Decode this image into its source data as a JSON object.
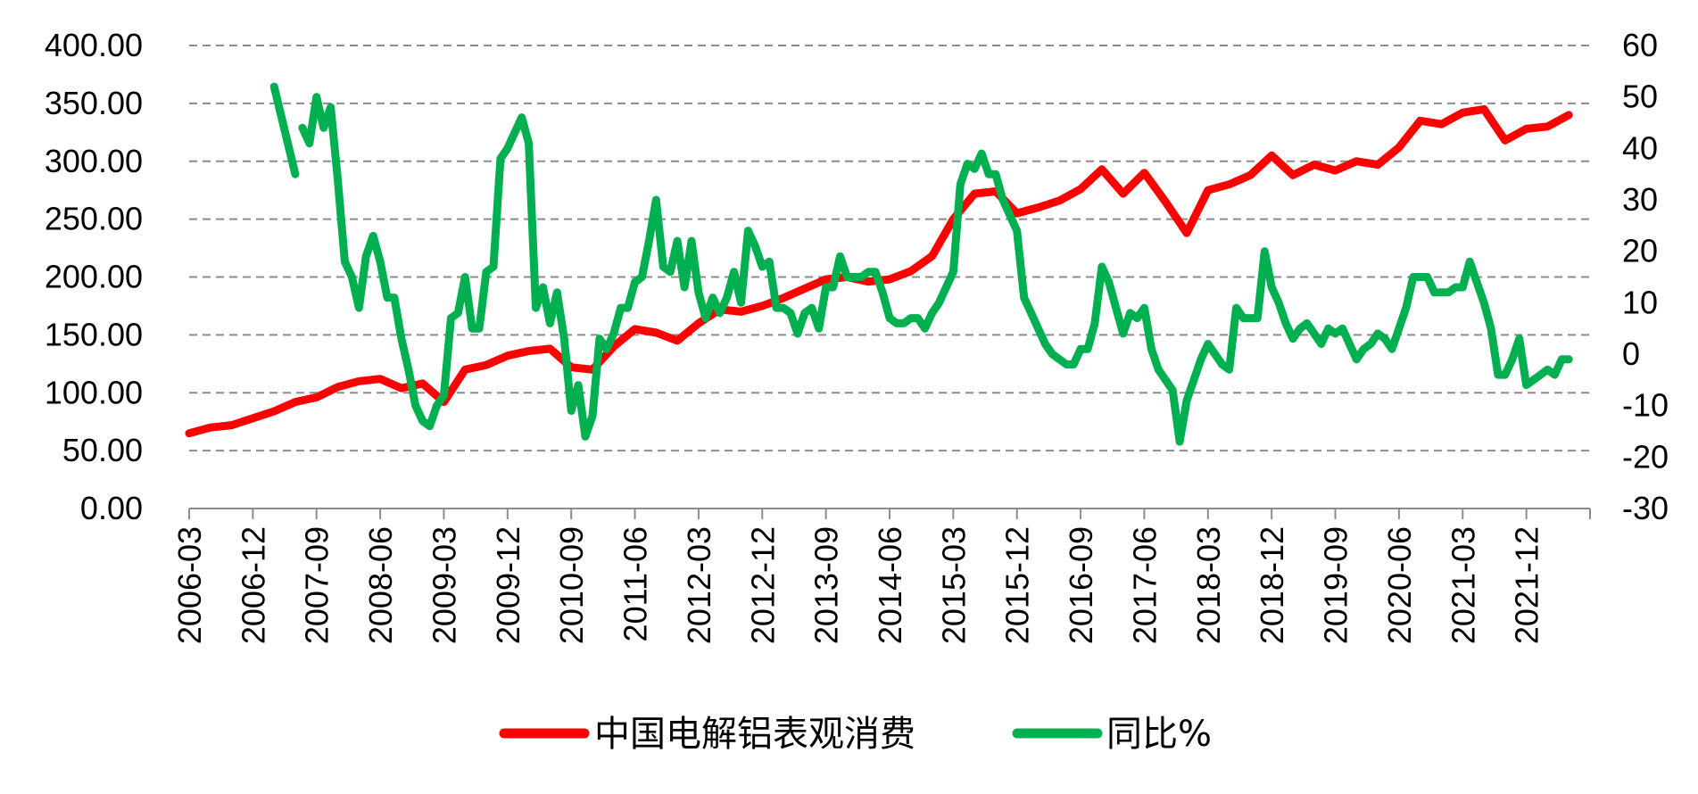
{
  "chart_data": {
    "type": "line",
    "title": "",
    "xlabel": "",
    "ylabel": "",
    "y2label": "",
    "x_tick_labels": [
      "2006-03",
      "2006-12",
      "2007-09",
      "2008-06",
      "2009-03",
      "2009-12",
      "2010-09",
      "2011-06",
      "2012-03",
      "2012-12",
      "2013-09",
      "2014-06",
      "2015-03",
      "2015-12",
      "2016-09",
      "2017-06",
      "2018-03",
      "2018-12",
      "2019-09",
      "2020-06",
      "2021-03",
      "2021-12"
    ],
    "ylim_left": [
      0,
      400
    ],
    "ylim_right": [
      -30,
      60
    ],
    "y_left_tick_labels": [
      "0.00",
      "50.00",
      "100.00",
      "150.00",
      "200.00",
      "250.00",
      "300.00",
      "350.00",
      "400.00"
    ],
    "y_right_tick_labels": [
      "-30",
      "-20",
      "-10",
      "0",
      "10",
      "20",
      "30",
      "40",
      "50",
      "60"
    ],
    "grid": "horizontal dashed",
    "legend_position": "bottom",
    "series": [
      {
        "name": "中国电解铝表观消费",
        "axis": "left",
        "color": "#ff0000",
        "points": [
          [
            "2006-03",
            65
          ],
          [
            "2006-06",
            70
          ],
          [
            "2006-09",
            72
          ],
          [
            "2006-12",
            78
          ],
          [
            "2007-03",
            84
          ],
          [
            "2007-06",
            92
          ],
          [
            "2007-09",
            96
          ],
          [
            "2007-12",
            105
          ],
          [
            "2008-03",
            110
          ],
          [
            "2008-06",
            112
          ],
          [
            "2008-09",
            104
          ],
          [
            "2008-12",
            108
          ],
          [
            "2009-03",
            92
          ],
          [
            "2009-06",
            120
          ],
          [
            "2009-09",
            124
          ],
          [
            "2009-12",
            132
          ],
          [
            "2010-03",
            136
          ],
          [
            "2010-06",
            138
          ],
          [
            "2010-09",
            122
          ],
          [
            "2010-12",
            120
          ],
          [
            "2011-03",
            140
          ],
          [
            "2011-06",
            155
          ],
          [
            "2011-09",
            152
          ],
          [
            "2011-12",
            145
          ],
          [
            "2012-03",
            160
          ],
          [
            "2012-06",
            172
          ],
          [
            "2012-09",
            170
          ],
          [
            "2012-12",
            175
          ],
          [
            "2013-03",
            182
          ],
          [
            "2013-06",
            190
          ],
          [
            "2013-09",
            198
          ],
          [
            "2013-12",
            200
          ],
          [
            "2014-03",
            196
          ],
          [
            "2014-06",
            198
          ],
          [
            "2014-09",
            205
          ],
          [
            "2014-12",
            218
          ],
          [
            "2015-03",
            250
          ],
          [
            "2015-06",
            272
          ],
          [
            "2015-09",
            274
          ],
          [
            "2015-12",
            255
          ],
          [
            "2016-03",
            260
          ],
          [
            "2016-06",
            266
          ],
          [
            "2016-09",
            276
          ],
          [
            "2016-12",
            293
          ],
          [
            "2017-03",
            272
          ],
          [
            "2017-06",
            290
          ],
          [
            "2017-09",
            265
          ],
          [
            "2017-12",
            238
          ],
          [
            "2018-03",
            275
          ],
          [
            "2018-06",
            280
          ],
          [
            "2018-09",
            288
          ],
          [
            "2018-12",
            305
          ],
          [
            "2019-03",
            288
          ],
          [
            "2019-06",
            297
          ],
          [
            "2019-09",
            292
          ],
          [
            "2019-12",
            300
          ],
          [
            "2020-03",
            297
          ],
          [
            "2020-06",
            312
          ],
          [
            "2020-09",
            335
          ],
          [
            "2020-12",
            332
          ],
          [
            "2021-03",
            342
          ],
          [
            "2021-06",
            345
          ],
          [
            "2021-09",
            318
          ],
          [
            "2021-12",
            328
          ],
          [
            "2022-03",
            330
          ],
          [
            "2022-06",
            340
          ]
        ]
      },
      {
        "name": "同比%",
        "axis": "right",
        "color": "#00b050",
        "segments": [
          [
            [
              "2007-03",
              52
            ],
            [
              "2007-06",
              35
            ]
          ],
          [
            [
              "2007-07",
              44
            ],
            [
              "2007-08",
              41
            ],
            [
              "2007-09",
              50
            ],
            [
              "2007-10",
              44
            ],
            [
              "2007-11",
              48
            ],
            [
              "2007-12",
              34
            ],
            [
              "2008-01",
              18
            ],
            [
              "2008-02",
              15
            ],
            [
              "2008-03",
              9
            ],
            [
              "2008-04",
              19
            ],
            [
              "2008-05",
              23
            ],
            [
              "2008-06",
              18
            ],
            [
              "2008-07",
              11
            ],
            [
              "2008-08",
              11
            ],
            [
              "2008-09",
              3
            ],
            [
              "2008-10",
              -3
            ],
            [
              "2008-11",
              -10
            ],
            [
              "2008-12",
              -13
            ],
            [
              "2009-01",
              -14
            ],
            [
              "2009-02",
              -10
            ],
            [
              "2009-03",
              -8
            ],
            [
              "2009-04",
              7
            ],
            [
              "2009-05",
              8
            ],
            [
              "2009-06",
              15
            ],
            [
              "2009-07",
              5
            ],
            [
              "2009-08",
              5
            ],
            [
              "2009-09",
              16
            ],
            [
              "2009-10",
              17
            ],
            [
              "2009-11",
              38
            ],
            [
              "2009-12",
              40
            ],
            [
              "2010-01",
              43
            ],
            [
              "2010-02",
              46
            ],
            [
              "2010-03",
              41
            ],
            [
              "2010-04",
              9
            ],
            [
              "2010-05",
              13
            ],
            [
              "2010-06",
              6
            ],
            [
              "2010-07",
              12
            ],
            [
              "2010-08",
              3
            ],
            [
              "2010-09",
              -11
            ],
            [
              "2010-10",
              -6
            ],
            [
              "2010-11",
              -16
            ],
            [
              "2010-12",
              -12
            ],
            [
              "2011-01",
              3
            ],
            [
              "2011-02",
              1
            ],
            [
              "2011-03",
              4
            ],
            [
              "2011-04",
              9
            ],
            [
              "2011-05",
              9
            ],
            [
              "2011-06",
              14
            ],
            [
              "2011-07",
              15
            ],
            [
              "2011-08",
              22
            ],
            [
              "2011-09",
              30
            ],
            [
              "2011-10",
              17
            ],
            [
              "2011-11",
              16
            ],
            [
              "2011-12",
              22
            ],
            [
              "2012-01",
              13
            ],
            [
              "2012-02",
              22
            ],
            [
              "2012-03",
              12
            ],
            [
              "2012-04",
              7
            ],
            [
              "2012-05",
              11
            ],
            [
              "2012-06",
              8
            ],
            [
              "2012-07",
              11
            ],
            [
              "2012-08",
              16
            ],
            [
              "2012-09",
              10
            ],
            [
              "2012-10",
              24
            ],
            [
              "2012-11",
              21
            ],
            [
              "2012-12",
              17
            ],
            [
              "2013-01",
              18
            ],
            [
              "2013-02",
              9
            ],
            [
              "2013-03",
              9
            ],
            [
              "2013-04",
              8
            ],
            [
              "2013-05",
              4
            ],
            [
              "2013-06",
              8
            ],
            [
              "2013-07",
              9
            ],
            [
              "2013-08",
              5
            ],
            [
              "2013-09",
              13
            ],
            [
              "2013-10",
              13
            ],
            [
              "2013-11",
              19
            ],
            [
              "2013-12",
              15
            ],
            [
              "2014-01",
              15
            ],
            [
              "2014-02",
              15
            ],
            [
              "2014-03",
              16
            ],
            [
              "2014-04",
              16
            ],
            [
              "2014-05",
              12
            ],
            [
              "2014-06",
              7
            ],
            [
              "2014-07",
              6
            ],
            [
              "2014-08",
              6
            ],
            [
              "2014-09",
              7
            ],
            [
              "2014-10",
              7
            ],
            [
              "2014-11",
              5
            ],
            [
              "2014-12",
              8
            ],
            [
              "2015-01",
              10
            ],
            [
              "2015-02",
              13
            ],
            [
              "2015-03",
              16
            ],
            [
              "2015-04",
              33
            ],
            [
              "2015-05",
              37
            ],
            [
              "2015-06",
              36
            ],
            [
              "2015-07",
              39
            ],
            [
              "2015-08",
              35
            ],
            [
              "2015-09",
              35
            ],
            [
              "2015-10",
              30
            ],
            [
              "2015-11",
              27
            ],
            [
              "2015-12",
              24
            ],
            [
              "2016-01",
              11
            ],
            [
              "2016-02",
              8
            ],
            [
              "2016-03",
              5
            ],
            [
              "2016-04",
              2
            ],
            [
              "2016-05",
              0
            ],
            [
              "2016-06",
              -1
            ],
            [
              "2016-07",
              -2
            ],
            [
              "2016-08",
              -2
            ],
            [
              "2016-09",
              1
            ],
            [
              "2016-10",
              1
            ],
            [
              "2016-11",
              6
            ],
            [
              "2016-12",
              17
            ],
            [
              "2017-01",
              14
            ],
            [
              "2017-02",
              9
            ],
            [
              "2017-03",
              4
            ],
            [
              "2017-04",
              8
            ],
            [
              "2017-05",
              7
            ],
            [
              "2017-06",
              9
            ],
            [
              "2017-07",
              1
            ],
            [
              "2017-08",
              -3
            ],
            [
              "2017-09",
              -5
            ],
            [
              "2017-10",
              -7
            ],
            [
              "2017-11",
              -17
            ],
            [
              "2017-12",
              -9
            ],
            [
              "2018-01",
              -5
            ],
            [
              "2018-02",
              -1
            ],
            [
              "2018-03",
              2
            ],
            [
              "2018-04",
              0
            ],
            [
              "2018-05",
              -2
            ],
            [
              "2018-06",
              -3
            ],
            [
              "2018-07",
              9
            ],
            [
              "2018-08",
              7
            ],
            [
              "2018-09",
              7
            ],
            [
              "2018-10",
              7
            ],
            [
              "2018-11",
              20
            ],
            [
              "2018-12",
              13
            ],
            [
              "2019-01",
              10
            ],
            [
              "2019-02",
              6
            ],
            [
              "2019-03",
              3
            ],
            [
              "2019-04",
              5
            ],
            [
              "2019-05",
              6
            ],
            [
              "2019-06",
              4
            ],
            [
              "2019-07",
              2
            ],
            [
              "2019-08",
              5
            ],
            [
              "2019-09",
              4
            ],
            [
              "2019-10",
              5
            ],
            [
              "2019-11",
              2
            ],
            [
              "2019-12",
              -1
            ],
            [
              "2020-01",
              1
            ],
            [
              "2020-02",
              2
            ],
            [
              "2020-03",
              4
            ],
            [
              "2020-04",
              3
            ],
            [
              "2020-05",
              1
            ],
            [
              "2020-06",
              5
            ],
            [
              "2020-07",
              9
            ],
            [
              "2020-08",
              15
            ],
            [
              "2020-09",
              15
            ],
            [
              "2020-10",
              15
            ],
            [
              "2020-11",
              12
            ],
            [
              "2020-12",
              12
            ],
            [
              "2021-01",
              12
            ],
            [
              "2021-02",
              13
            ],
            [
              "2021-03",
              13
            ],
            [
              "2021-04",
              18
            ],
            [
              "2021-05",
              14
            ],
            [
              "2021-06",
              10
            ],
            [
              "2021-07",
              5
            ],
            [
              "2021-08",
              -4
            ],
            [
              "2021-09",
              -4
            ],
            [
              "2021-10",
              -1
            ],
            [
              "2021-11",
              3
            ],
            [
              "2021-12",
              -6
            ],
            [
              "2022-01",
              -5
            ],
            [
              "2022-02",
              -4
            ],
            [
              "2022-03",
              -3
            ],
            [
              "2022-04",
              -4
            ],
            [
              "2022-05",
              -1
            ],
            [
              "2022-06",
              -1
            ]
          ]
        ]
      }
    ]
  }
}
